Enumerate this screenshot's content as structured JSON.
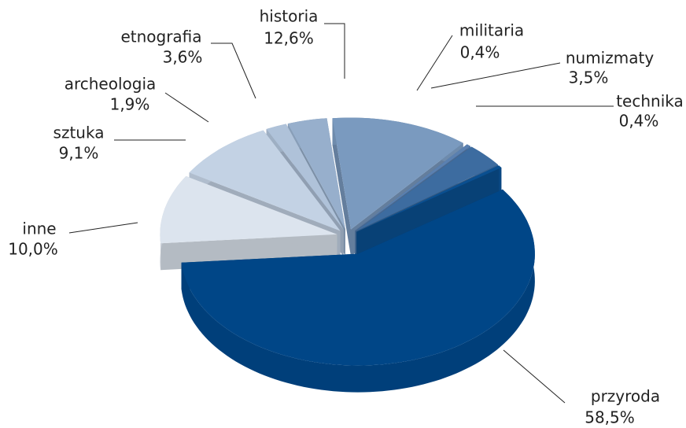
{
  "chart_data": {
    "type": "pie",
    "categories": [
      "historia",
      "militaria",
      "numizmaty",
      "technika",
      "przyroda",
      "inne",
      "sztuka",
      "archeologia",
      "etnografia"
    ],
    "values": [
      12.6,
      0.4,
      3.5,
      0.4,
      58.5,
      10.0,
      9.1,
      1.9,
      3.6
    ],
    "value_labels": [
      "12,6%",
      "0,4%",
      "3,5%",
      "0,4%",
      "58,5%",
      "10,0%",
      "9,1%",
      "1,9%",
      "3,6%"
    ],
    "colors": [
      "#7a9abf",
      "#5a80b0",
      "#3d6ca0",
      "#0a4f90",
      "#004687",
      "#dce4ee",
      "#c3d2e4",
      "#afc2d9",
      "#97afcc"
    ]
  }
}
